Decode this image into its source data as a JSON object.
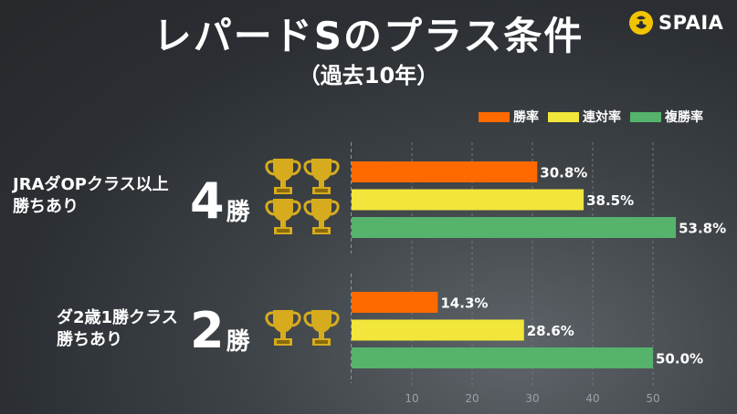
{
  "title": "レパードSのプラス条件",
  "subtitle": "（過去10年）",
  "brand": "SPAIA",
  "colors": {
    "win": "#ff6a00",
    "quinella": "#f2e63a",
    "place": "#55b36c",
    "gold": "#d6ac1e"
  },
  "chart_data": {
    "type": "bar",
    "orientation": "horizontal",
    "categories": [
      "JRAダOPクラス以上勝ちあり",
      "ダ2歳1勝クラス勝ちあり"
    ],
    "series": [
      {
        "name": "勝率",
        "values": [
          30.8,
          14.3
        ],
        "labels": [
          "30.8%",
          "14.3%"
        ]
      },
      {
        "name": "連対率",
        "values": [
          38.5,
          28.6
        ],
        "labels": [
          "38.5%",
          "28.6%"
        ]
      },
      {
        "name": "複勝率",
        "values": [
          53.8,
          50.0
        ],
        "labels": [
          "53.8%",
          "50.0%"
        ]
      }
    ],
    "xlim": [
      0,
      55
    ],
    "xticks": [
      10,
      20,
      30,
      40,
      50
    ],
    "grid": true,
    "legend": "top-right"
  },
  "groups": [
    {
      "label_line1": "JRAダOPクラス以上",
      "label_line2": "勝ちあり",
      "wins_number": "4",
      "wins_unit": "勝",
      "trophies": 4
    },
    {
      "label_line1": "ダ2歳1勝クラス",
      "label_line2": "勝ちあり",
      "wins_number": "2",
      "wins_unit": "勝",
      "trophies": 2
    }
  ],
  "icons": {
    "trophy": "trophy-icon",
    "logo": "spaia-logo-icon"
  }
}
